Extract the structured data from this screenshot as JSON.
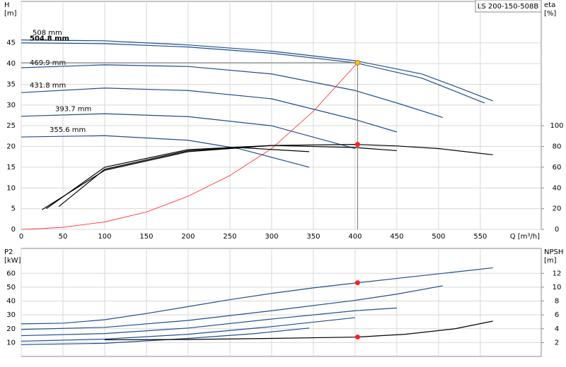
{
  "title_box": "LS 200-150-508B",
  "chart_data": [
    {
      "type": "line",
      "y_label": "H",
      "y_unit": "[m]",
      "y2_label": "eta",
      "y2_unit": "[%]",
      "x_label": "Q [m³/h]",
      "xlim": [
        0,
        623
      ],
      "xticks": [
        0,
        50,
        100,
        150,
        200,
        250,
        300,
        350,
        400,
        450,
        500,
        550
      ],
      "ylim": [
        0,
        55
      ],
      "yticks": [
        0,
        5,
        10,
        15,
        20,
        25,
        30,
        35,
        40,
        45
      ],
      "y2lim": [
        0,
        220
      ],
      "y2ticks": [
        0,
        20,
        40,
        60,
        80,
        100
      ],
      "grid": true,
      "series": [
        {
          "name": "508 mm",
          "color": "#1f4e8c",
          "x": [
            0,
            100,
            200,
            300,
            400,
            480,
            520,
            565
          ],
          "values": [
            45.7,
            45.5,
            44.5,
            43,
            40.7,
            37.5,
            34.5,
            31
          ]
        },
        {
          "name": "504.8 mm",
          "color": "#1f4e8c",
          "x": [
            0,
            100,
            200,
            300,
            400,
            480,
            555
          ],
          "values": [
            45,
            44.8,
            44,
            42.5,
            40.2,
            36.5,
            30.5
          ]
        },
        {
          "name": "469.9 mm",
          "color": "#1f4e8c",
          "x": [
            0,
            100,
            200,
            300,
            400,
            450,
            505
          ],
          "values": [
            39,
            39.7,
            39.3,
            37.5,
            33.5,
            30.5,
            27
          ]
        },
        {
          "name": "431.8 mm",
          "color": "#1f4e8c",
          "x": [
            0,
            100,
            200,
            300,
            400,
            450
          ],
          "values": [
            33,
            34.1,
            33.5,
            31.5,
            26.5,
            23.5
          ]
        },
        {
          "name": "393.7 mm",
          "color": "#1f4e8c",
          "x": [
            0,
            100,
            200,
            300,
            400
          ],
          "values": [
            27.3,
            27.9,
            27.2,
            25,
            19.5
          ]
        },
        {
          "name": "355.6 mm",
          "color": "#1f4e8c",
          "x": [
            0,
            100,
            200,
            260,
            345
          ],
          "values": [
            22.3,
            22.6,
            21.5,
            19.5,
            15
          ]
        },
        {
          "color": "#ff2020",
          "x": [
            0,
            25,
            50,
            100,
            150,
            200,
            250,
            300,
            350,
            403
          ],
          "values": [
            0,
            0.2,
            0.5,
            1.8,
            4.2,
            8,
            13,
            19.5,
            28.5,
            40.2
          ]
        },
        {
          "color": "#000000",
          "axis": "y2",
          "x": [
            25,
            100,
            200,
            300,
            400,
            450,
            500,
            565
          ],
          "values": [
            19,
            57,
            75,
            81,
            82,
            80.5,
            78,
            72
          ]
        },
        {
          "color": "#000000",
          "axis": "y2",
          "x": [
            30,
            100,
            200,
            300,
            400,
            450
          ],
          "values": [
            20,
            60,
            77,
            81,
            79,
            76
          ]
        },
        {
          "color": "#000000",
          "axis": "y2",
          "x": [
            45,
            100,
            200,
            260,
            345
          ],
          "values": [
            22,
            58,
            76,
            79,
            75
          ]
        }
      ],
      "points": [
        {
          "x": 403,
          "value": 40.2,
          "color": "#f5c518"
        },
        {
          "x": 403,
          "value": 82,
          "axis": "y2",
          "color": "#ff2020"
        }
      ]
    },
    {
      "type": "line",
      "y_label": "P2",
      "y_unit": "[kW]",
      "y2_label": "NPSH",
      "y2_unit": "[m]",
      "xlim": [
        0,
        623
      ],
      "ylim": [
        0,
        78
      ],
      "yticks": [
        10,
        20,
        30,
        40,
        50,
        60
      ],
      "y2lim": [
        0,
        15.6
      ],
      "y2ticks": [
        2,
        4,
        6,
        8,
        10,
        12
      ],
      "grid": true,
      "series": [
        {
          "color": "#1f4e8c",
          "x": [
            0,
            50,
            100,
            150,
            200,
            250,
            300,
            350,
            403,
            460,
            520,
            565
          ],
          "values": [
            23.5,
            24,
            26.5,
            31,
            36,
            41,
            45.5,
            49.5,
            53.2,
            57,
            61,
            64
          ]
        },
        {
          "color": "#1f4e8c",
          "x": [
            0,
            100,
            200,
            300,
            400,
            450,
            505
          ],
          "values": [
            19.5,
            21,
            26,
            33,
            40.5,
            45,
            51
          ]
        },
        {
          "color": "#1f4e8c",
          "x": [
            0,
            100,
            200,
            300,
            400,
            450
          ],
          "values": [
            15,
            16.5,
            20.5,
            27,
            33,
            35
          ]
        },
        {
          "color": "#1f4e8c",
          "x": [
            0,
            100,
            200,
            300,
            400
          ],
          "values": [
            11,
            12.5,
            16,
            21.5,
            28
          ]
        },
        {
          "color": "#1f4e8c",
          "x": [
            0,
            100,
            200,
            280,
            345
          ],
          "values": [
            8.5,
            9.5,
            13,
            16.5,
            20.5
          ]
        },
        {
          "color": "#000000",
          "axis": "y2",
          "x": [
            100,
            200,
            300,
            403,
            460,
            520,
            565
          ],
          "values": [
            2.4,
            2.45,
            2.6,
            2.8,
            3.2,
            4,
            5.1
          ]
        }
      ],
      "points": [
        {
          "x": 403,
          "value": 53.2,
          "color": "#ff2020"
        },
        {
          "x": 403,
          "value": 2.8,
          "axis": "y2",
          "color": "#ff2020"
        }
      ]
    }
  ]
}
